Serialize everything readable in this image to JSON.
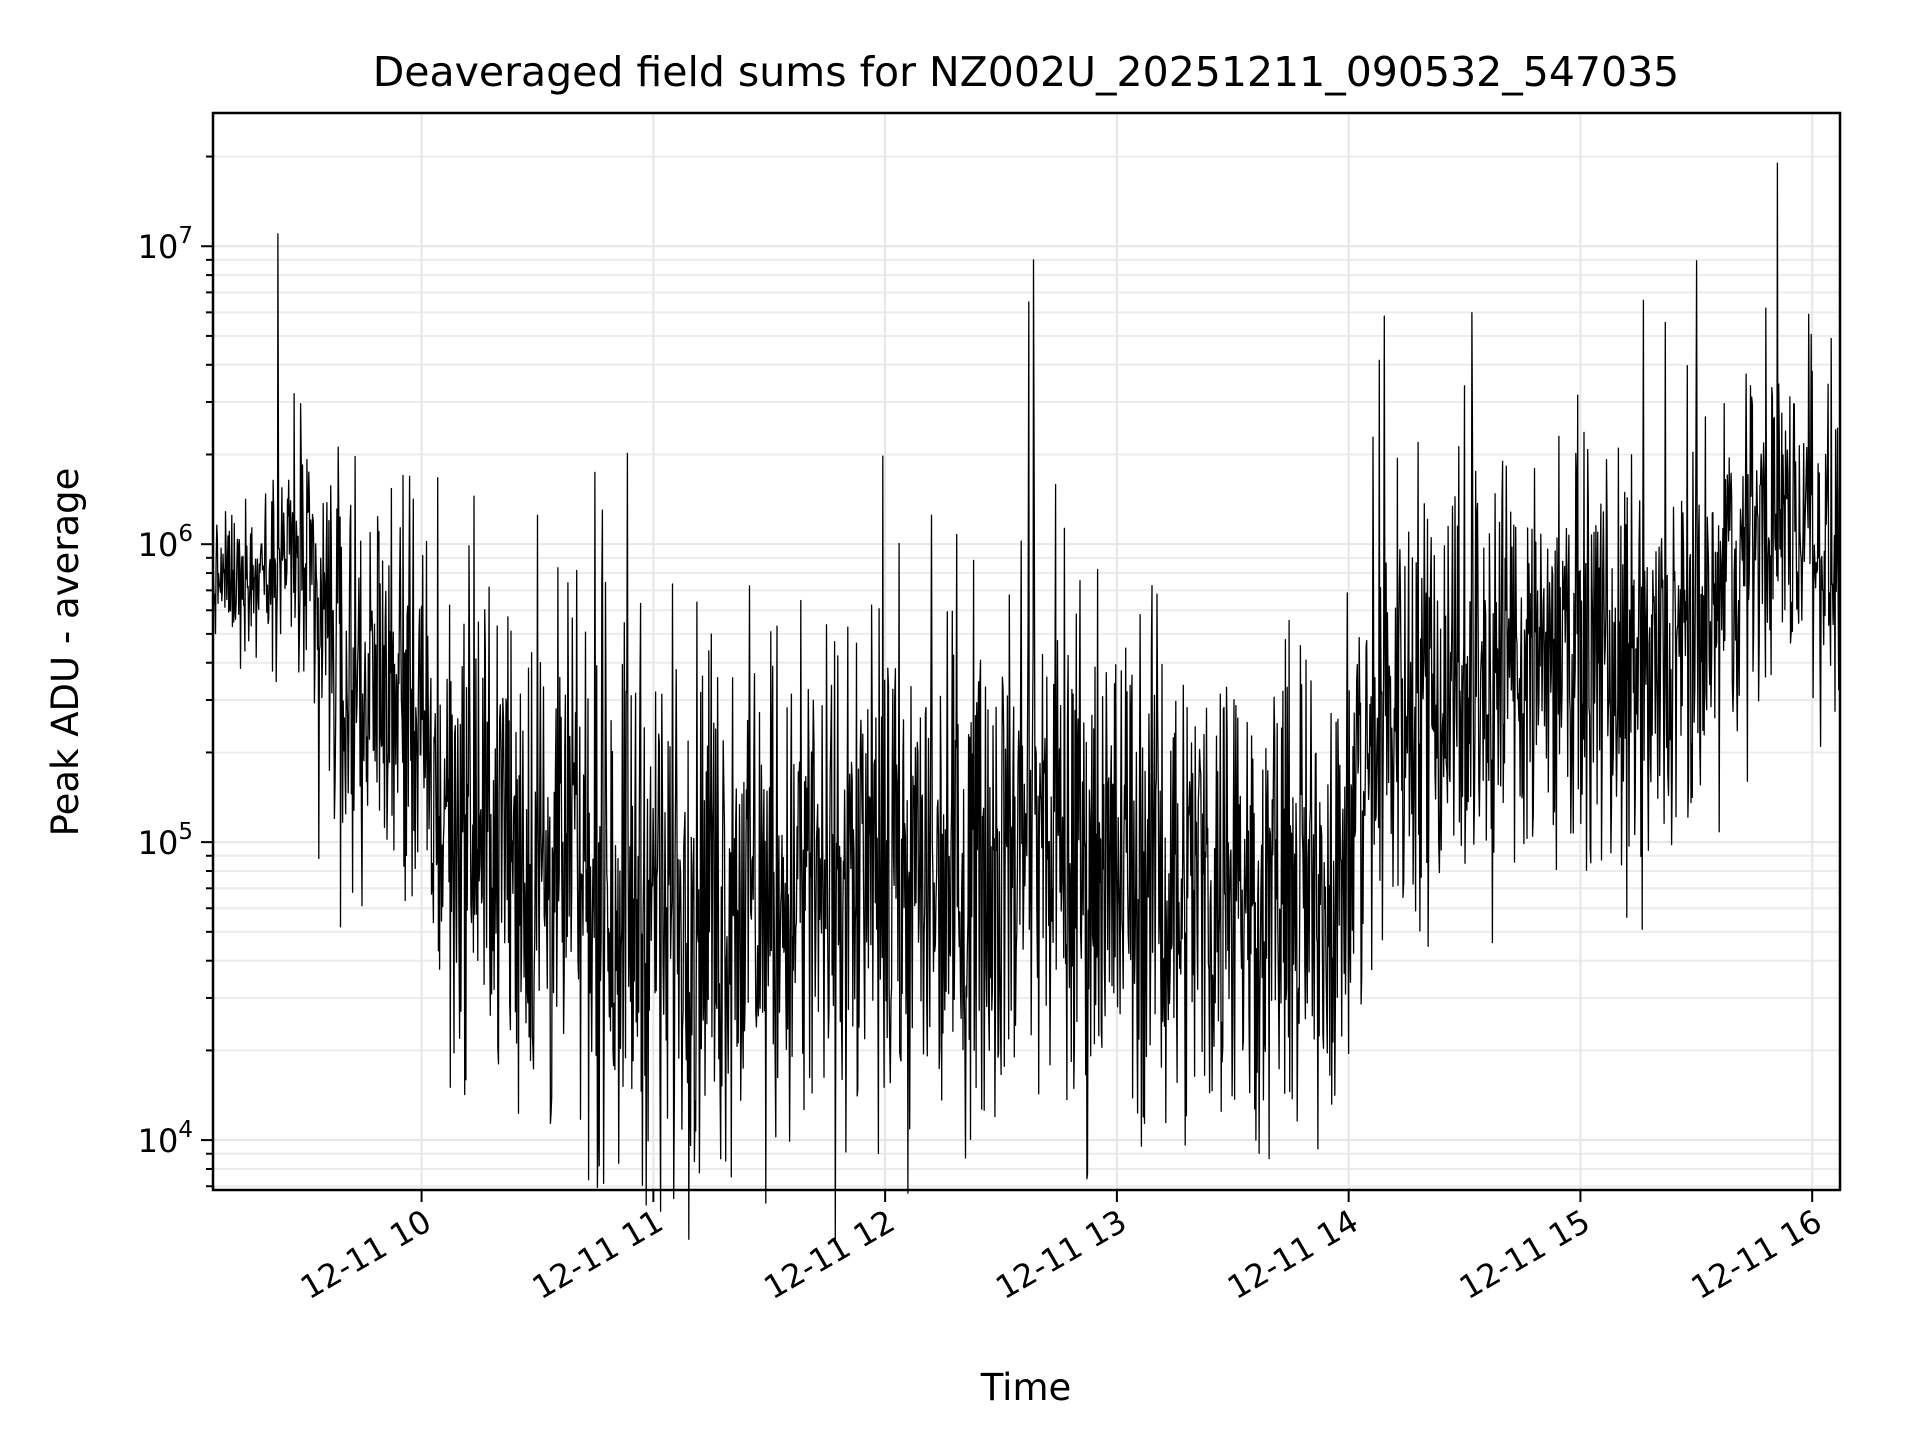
{
  "chart_data": {
    "type": "line",
    "title": "Deaveraged field sums for NZ002U_20251211_090532_547035",
    "xlabel": "Time",
    "ylabel": "Peak ADU - average",
    "yscale": "log",
    "ylim": [
      6800,
      28000000
    ],
    "xlim_hours": [
      9.1,
      16.12
    ],
    "grid": true,
    "line_color": "#000000",
    "x_ticks": [
      {
        "value": 10,
        "label": "12-11 10"
      },
      {
        "value": 11,
        "label": "12-11 11"
      },
      {
        "value": 12,
        "label": "12-11 12"
      },
      {
        "value": 13,
        "label": "12-11 13"
      },
      {
        "value": 14,
        "label": "12-11 14"
      },
      {
        "value": 15,
        "label": "12-11 15"
      },
      {
        "value": 16,
        "label": "12-11 16"
      }
    ],
    "y_ticks": [
      {
        "value": 10000,
        "base": "10",
        "exp": "4"
      },
      {
        "value": 100000,
        "base": "10",
        "exp": "5"
      },
      {
        "value": 1000000,
        "base": "10",
        "exp": "6"
      },
      {
        "value": 10000000,
        "base": "10",
        "exp": "7"
      }
    ],
    "series": [
      {
        "name": "field sums",
        "x_start_hours": 9.1,
        "x_end_hours": 16.12,
        "envelope_x_hours": [
          9.1,
          9.3,
          9.45,
          9.55,
          9.7,
          9.9,
          10.05,
          10.5,
          11.0,
          11.5,
          12.0,
          12.5,
          12.65,
          12.8,
          13.0,
          13.5,
          13.8,
          14.0,
          14.2,
          14.6,
          15.0,
          15.3,
          15.6,
          15.85,
          16.12
        ],
        "envelope_median": [
          750000,
          800000,
          900000,
          550000,
          350000,
          350000,
          130000,
          80000,
          65000,
          60000,
          70000,
          85000,
          110000,
          80000,
          80000,
          70000,
          60000,
          85000,
          300000,
          380000,
          450000,
          300000,
          550000,
          1300000,
          900000
        ],
        "envelope_spread_decades": [
          0.15,
          0.18,
          0.25,
          0.45,
          0.45,
          0.4,
          0.55,
          0.6,
          0.65,
          0.6,
          0.6,
          0.6,
          0.55,
          0.6,
          0.6,
          0.55,
          0.55,
          0.55,
          0.55,
          0.55,
          0.45,
          0.5,
          0.45,
          0.35,
          0.4
        ],
        "spikes": [
          {
            "x_hours": 9.38,
            "value": 11000000
          },
          {
            "x_hours": 9.45,
            "value": 3200000
          },
          {
            "x_hours": 9.6,
            "value": 1200000
          },
          {
            "x_hours": 9.92,
            "value": 1700000
          },
          {
            "x_hours": 10.5,
            "value": 1250000
          },
          {
            "x_hours": 10.78,
            "value": 1300000
          },
          {
            "x_hours": 12.2,
            "value": 1250000
          },
          {
            "x_hours": 12.62,
            "value": 6500000
          },
          {
            "x_hours": 12.64,
            "value": 9000000
          },
          {
            "x_hours": 14.5,
            "value": 3400000
          },
          {
            "x_hours": 15.8,
            "value": 6200000
          },
          {
            "x_hours": 15.85,
            "value": 19000000
          },
          {
            "x_hours": 16.0,
            "value": 3800000
          }
        ],
        "dips": [
          {
            "x_hours": 9.65,
            "value": 52000
          },
          {
            "x_hours": 10.47,
            "value": 18500
          },
          {
            "x_hours": 11.18,
            "value": 13500
          },
          {
            "x_hours": 13.45,
            "value": 12500
          },
          {
            "x_hours": 13.6,
            "value": 10000
          },
          {
            "x_hours": 14.62,
            "value": 46000
          },
          {
            "x_hours": 15.2,
            "value": 56000
          }
        ]
      }
    ]
  }
}
